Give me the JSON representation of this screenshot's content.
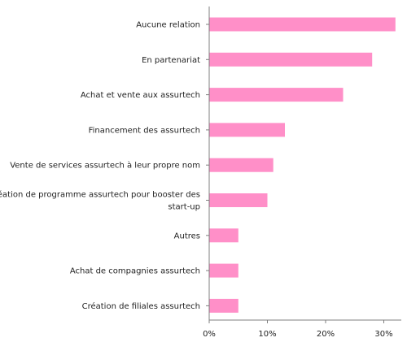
{
  "chart_data": {
    "type": "bar",
    "orientation": "horizontal",
    "categories": [
      "Aucune relation",
      "En partenariat",
      "Achat et vente aux assurtech",
      "Financement des assurtech",
      "Vente de services assurtech à leur propre nom",
      "Création de programme assurtech pour booster des start-up",
      "Autres",
      "Achat de compagnies assurtech",
      "Création de filiales assurtech"
    ],
    "category_lines": [
      [
        "Aucune relation"
      ],
      [
        "En partenariat"
      ],
      [
        "Achat et vente aux assurtech"
      ],
      [
        "Financement des assurtech"
      ],
      [
        "Vente de services assurtech à leur propre nom"
      ],
      [
        "Création de programme assurtech pour booster des",
        "start-up"
      ],
      [
        "Autres"
      ],
      [
        "Achat de compagnies assurtech"
      ],
      [
        "Création de filiales assurtech"
      ]
    ],
    "values": [
      32,
      28,
      23,
      13,
      11,
      10,
      5,
      5,
      5
    ],
    "value_unit": "%",
    "xlim": [
      0,
      33
    ],
    "x_ticks": [
      0,
      10,
      20,
      30
    ],
    "x_tick_labels": [
      "0%",
      "10%",
      "20%",
      "30%"
    ],
    "title": "",
    "xlabel": "",
    "ylabel": "",
    "grid": false,
    "legend": "none",
    "bar_color": "#ff8fc8",
    "axis_color": "#7f7f7f",
    "text_color": "#1f1f1f"
  }
}
